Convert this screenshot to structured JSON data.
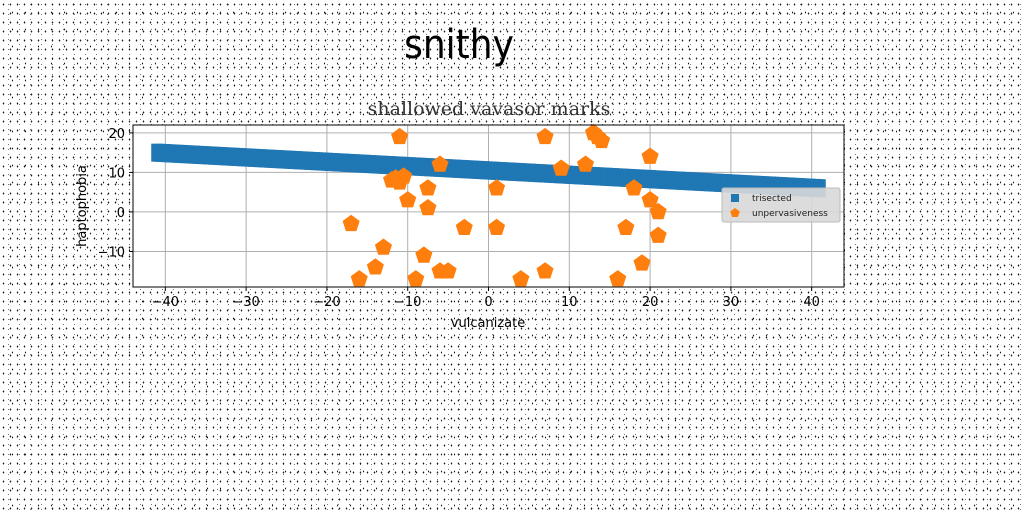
{
  "page": {
    "title": "snithy"
  },
  "chart_data": {
    "type": "scatter",
    "title": "shallowed vavasor marks",
    "xlabel": "vulcanizate",
    "ylabel": "haptophobia",
    "xlim": [
      -44,
      44
    ],
    "ylim": [
      -19,
      22
    ],
    "xticks": [
      -40,
      -30,
      -20,
      -10,
      0,
      10,
      20,
      30,
      40
    ],
    "yticks": [
      -10,
      0,
      10,
      20
    ],
    "ytick_labels": [
      "−10",
      "0",
      "10",
      "20"
    ],
    "xtick_labels": [
      "−40",
      "−30",
      "−20",
      "−10",
      "0",
      "10",
      "20",
      "30",
      "40"
    ],
    "grid": true,
    "legend_position": "right",
    "colors": {
      "trisected": "#1f77b4",
      "unpervasiveness": "#ff7f0e"
    },
    "series": [
      {
        "name": "trisected",
        "marker": "square",
        "x_range": [
          -41,
          41
        ],
        "y_start": 15,
        "y_end": 6,
        "count": 200
      },
      {
        "name": "unpervasiveness",
        "marker": "pentagon",
        "points": [
          [
            -11,
            19
          ],
          [
            -6,
            12
          ],
          [
            -11.5,
            8.5
          ],
          [
            -12,
            8
          ],
          [
            -10.5,
            9
          ],
          [
            -11,
            7.5
          ],
          [
            -7.5,
            6
          ],
          [
            -10,
            3
          ],
          [
            -7.5,
            1
          ],
          [
            -17,
            -3
          ],
          [
            -3,
            -4
          ],
          [
            1,
            -4
          ],
          [
            -13,
            -9
          ],
          [
            -8,
            -11
          ],
          [
            -14,
            -14
          ],
          [
            -16,
            -17
          ],
          [
            -6,
            -15
          ],
          [
            -5,
            -15
          ],
          [
            -9,
            -17
          ],
          [
            4,
            -17
          ],
          [
            7,
            -15
          ],
          [
            16,
            -17
          ],
          [
            19,
            -13
          ],
          [
            21,
            -6
          ],
          [
            17,
            -4
          ],
          [
            21,
            0
          ],
          [
            20,
            3
          ],
          [
            18,
            6
          ],
          [
            20,
            14
          ],
          [
            12,
            12
          ],
          [
            9,
            11
          ],
          [
            1,
            6
          ],
          [
            7,
            19
          ],
          [
            13,
            20
          ],
          [
            13.5,
            19
          ],
          [
            14,
            18
          ]
        ]
      }
    ]
  }
}
